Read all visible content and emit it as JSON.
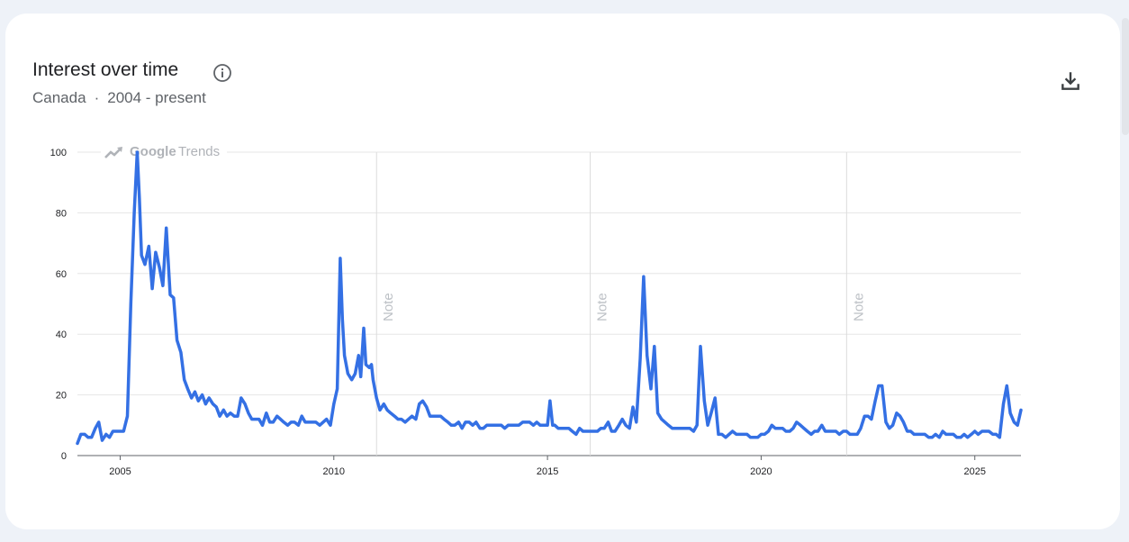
{
  "header": {
    "title": "Interest over time",
    "region": "Canada",
    "separator": "·",
    "range": "2004 - present"
  },
  "watermark": {
    "brand": "Google",
    "product": "Trends"
  },
  "colors": {
    "line": "#3470e4",
    "grid": "#e6e6e6",
    "background": "#ffffff"
  },
  "icons": [
    "info-icon",
    "download-icon",
    "trends-logo-icon"
  ],
  "chart_data": {
    "type": "line",
    "title": "Interest over time",
    "xlabel": "",
    "ylabel": "",
    "xlim": [
      2004.0,
      2026.08
    ],
    "ylim": [
      0,
      100
    ],
    "yticks": [
      0,
      20,
      40,
      60,
      80,
      100
    ],
    "xticks": [
      2005,
      2010,
      2015,
      2020,
      2025
    ],
    "grid": true,
    "notes": [
      {
        "x": 2011.0,
        "label": "Note"
      },
      {
        "x": 2016.0,
        "label": "Note"
      },
      {
        "x": 2022.0,
        "label": "Note"
      }
    ],
    "series": [
      {
        "values": [
          [
            2004.0,
            4
          ],
          [
            2004.08,
            7
          ],
          [
            2004.17,
            7
          ],
          [
            2004.25,
            6
          ],
          [
            2004.33,
            6
          ],
          [
            2004.42,
            9
          ],
          [
            2004.5,
            11
          ],
          [
            2004.58,
            5
          ],
          [
            2004.67,
            7
          ],
          [
            2004.75,
            6
          ],
          [
            2004.83,
            8
          ],
          [
            2004.92,
            8
          ],
          [
            2005.0,
            8
          ],
          [
            2005.08,
            8
          ],
          [
            2005.17,
            13
          ],
          [
            2005.25,
            50
          ],
          [
            2005.33,
            80
          ],
          [
            2005.4,
            100
          ],
          [
            2005.45,
            85
          ],
          [
            2005.5,
            66
          ],
          [
            2005.58,
            63
          ],
          [
            2005.67,
            69
          ],
          [
            2005.75,
            55
          ],
          [
            2005.83,
            67
          ],
          [
            2005.92,
            62
          ],
          [
            2006.0,
            56
          ],
          [
            2006.08,
            75
          ],
          [
            2006.17,
            53
          ],
          [
            2006.25,
            52
          ],
          [
            2006.33,
            38
          ],
          [
            2006.42,
            34
          ],
          [
            2006.5,
            25
          ],
          [
            2006.58,
            22
          ],
          [
            2006.67,
            19
          ],
          [
            2006.75,
            21
          ],
          [
            2006.83,
            18
          ],
          [
            2006.92,
            20
          ],
          [
            2007.0,
            17
          ],
          [
            2007.08,
            19
          ],
          [
            2007.17,
            17
          ],
          [
            2007.25,
            16
          ],
          [
            2007.33,
            13
          ],
          [
            2007.42,
            15
          ],
          [
            2007.5,
            13
          ],
          [
            2007.58,
            14
          ],
          [
            2007.67,
            13
          ],
          [
            2007.75,
            13
          ],
          [
            2007.83,
            19
          ],
          [
            2007.92,
            17
          ],
          [
            2008.0,
            14
          ],
          [
            2008.08,
            12
          ],
          [
            2008.17,
            12
          ],
          [
            2008.25,
            12
          ],
          [
            2008.33,
            10
          ],
          [
            2008.42,
            14
          ],
          [
            2008.5,
            11
          ],
          [
            2008.58,
            11
          ],
          [
            2008.67,
            13
          ],
          [
            2008.75,
            12
          ],
          [
            2008.83,
            11
          ],
          [
            2008.92,
            10
          ],
          [
            2009.0,
            11
          ],
          [
            2009.08,
            11
          ],
          [
            2009.17,
            10
          ],
          [
            2009.25,
            13
          ],
          [
            2009.33,
            11
          ],
          [
            2009.42,
            11
          ],
          [
            2009.5,
            11
          ],
          [
            2009.58,
            11
          ],
          [
            2009.67,
            10
          ],
          [
            2009.75,
            11
          ],
          [
            2009.83,
            12
          ],
          [
            2009.92,
            10
          ],
          [
            2010.0,
            17
          ],
          [
            2010.08,
            22
          ],
          [
            2010.15,
            65
          ],
          [
            2010.2,
            45
          ],
          [
            2010.25,
            33
          ],
          [
            2010.33,
            27
          ],
          [
            2010.42,
            25
          ],
          [
            2010.5,
            27
          ],
          [
            2010.58,
            33
          ],
          [
            2010.63,
            26
          ],
          [
            2010.7,
            42
          ],
          [
            2010.75,
            30
          ],
          [
            2010.83,
            29
          ],
          [
            2010.88,
            30
          ],
          [
            2010.92,
            25
          ],
          [
            2011.0,
            19
          ],
          [
            2011.08,
            15
          ],
          [
            2011.17,
            17
          ],
          [
            2011.25,
            15
          ],
          [
            2011.33,
            14
          ],
          [
            2011.42,
            13
          ],
          [
            2011.5,
            12
          ],
          [
            2011.58,
            12
          ],
          [
            2011.67,
            11
          ],
          [
            2011.75,
            12
          ],
          [
            2011.83,
            13
          ],
          [
            2011.92,
            12
          ],
          [
            2012.0,
            17
          ],
          [
            2012.08,
            18
          ],
          [
            2012.17,
            16
          ],
          [
            2012.25,
            13
          ],
          [
            2012.33,
            13
          ],
          [
            2012.42,
            13
          ],
          [
            2012.5,
            13
          ],
          [
            2012.58,
            12
          ],
          [
            2012.67,
            11
          ],
          [
            2012.75,
            10
          ],
          [
            2012.83,
            10
          ],
          [
            2012.92,
            11
          ],
          [
            2013.0,
            9
          ],
          [
            2013.08,
            11
          ],
          [
            2013.17,
            11
          ],
          [
            2013.25,
            10
          ],
          [
            2013.33,
            11
          ],
          [
            2013.42,
            9
          ],
          [
            2013.5,
            9
          ],
          [
            2013.58,
            10
          ],
          [
            2013.67,
            10
          ],
          [
            2013.75,
            10
          ],
          [
            2013.83,
            10
          ],
          [
            2013.92,
            10
          ],
          [
            2014.0,
            9
          ],
          [
            2014.08,
            10
          ],
          [
            2014.17,
            10
          ],
          [
            2014.25,
            10
          ],
          [
            2014.33,
            10
          ],
          [
            2014.42,
            11
          ],
          [
            2014.5,
            11
          ],
          [
            2014.58,
            11
          ],
          [
            2014.67,
            10
          ],
          [
            2014.75,
            11
          ],
          [
            2014.83,
            10
          ],
          [
            2014.92,
            10
          ],
          [
            2015.0,
            10
          ],
          [
            2015.06,
            18
          ],
          [
            2015.12,
            10
          ],
          [
            2015.17,
            10
          ],
          [
            2015.25,
            9
          ],
          [
            2015.33,
            9
          ],
          [
            2015.42,
            9
          ],
          [
            2015.5,
            9
          ],
          [
            2015.58,
            8
          ],
          [
            2015.67,
            7
          ],
          [
            2015.75,
            9
          ],
          [
            2015.83,
            8
          ],
          [
            2015.92,
            8
          ],
          [
            2016.0,
            8
          ],
          [
            2016.08,
            8
          ],
          [
            2016.17,
            8
          ],
          [
            2016.25,
            9
          ],
          [
            2016.33,
            9
          ],
          [
            2016.42,
            11
          ],
          [
            2016.5,
            8
          ],
          [
            2016.58,
            8
          ],
          [
            2016.67,
            10
          ],
          [
            2016.75,
            12
          ],
          [
            2016.83,
            10
          ],
          [
            2016.92,
            9
          ],
          [
            2017.0,
            16
          ],
          [
            2017.08,
            11
          ],
          [
            2017.17,
            32
          ],
          [
            2017.25,
            59
          ],
          [
            2017.33,
            33
          ],
          [
            2017.42,
            22
          ],
          [
            2017.5,
            36
          ],
          [
            2017.58,
            14
          ],
          [
            2017.67,
            12
          ],
          [
            2017.75,
            11
          ],
          [
            2017.83,
            10
          ],
          [
            2017.92,
            9
          ],
          [
            2018.0,
            9
          ],
          [
            2018.08,
            9
          ],
          [
            2018.17,
            9
          ],
          [
            2018.25,
            9
          ],
          [
            2018.33,
            9
          ],
          [
            2018.42,
            8
          ],
          [
            2018.5,
            10
          ],
          [
            2018.58,
            36
          ],
          [
            2018.67,
            18
          ],
          [
            2018.75,
            10
          ],
          [
            2018.83,
            14
          ],
          [
            2018.92,
            19
          ],
          [
            2019.0,
            7
          ],
          [
            2019.08,
            7
          ],
          [
            2019.17,
            6
          ],
          [
            2019.25,
            7
          ],
          [
            2019.33,
            8
          ],
          [
            2019.42,
            7
          ],
          [
            2019.5,
            7
          ],
          [
            2019.58,
            7
          ],
          [
            2019.67,
            7
          ],
          [
            2019.75,
            6
          ],
          [
            2019.83,
            6
          ],
          [
            2019.92,
            6
          ],
          [
            2020.0,
            7
          ],
          [
            2020.08,
            7
          ],
          [
            2020.17,
            8
          ],
          [
            2020.25,
            10
          ],
          [
            2020.33,
            9
          ],
          [
            2020.42,
            9
          ],
          [
            2020.5,
            9
          ],
          [
            2020.58,
            8
          ],
          [
            2020.67,
            8
          ],
          [
            2020.75,
            9
          ],
          [
            2020.83,
            11
          ],
          [
            2020.92,
            10
          ],
          [
            2021.0,
            9
          ],
          [
            2021.08,
            8
          ],
          [
            2021.17,
            7
          ],
          [
            2021.25,
            8
          ],
          [
            2021.33,
            8
          ],
          [
            2021.42,
            10
          ],
          [
            2021.5,
            8
          ],
          [
            2021.58,
            8
          ],
          [
            2021.67,
            8
          ],
          [
            2021.75,
            8
          ],
          [
            2021.83,
            7
          ],
          [
            2021.92,
            8
          ],
          [
            2022.0,
            8
          ],
          [
            2022.08,
            7
          ],
          [
            2022.17,
            7
          ],
          [
            2022.25,
            7
          ],
          [
            2022.33,
            9
          ],
          [
            2022.42,
            13
          ],
          [
            2022.5,
            13
          ],
          [
            2022.58,
            12
          ],
          [
            2022.67,
            18
          ],
          [
            2022.75,
            23
          ],
          [
            2022.83,
            23
          ],
          [
            2022.92,
            11
          ],
          [
            2023.0,
            9
          ],
          [
            2023.08,
            10
          ],
          [
            2023.17,
            14
          ],
          [
            2023.25,
            13
          ],
          [
            2023.33,
            11
          ],
          [
            2023.42,
            8
          ],
          [
            2023.5,
            8
          ],
          [
            2023.58,
            7
          ],
          [
            2023.67,
            7
          ],
          [
            2023.75,
            7
          ],
          [
            2023.83,
            7
          ],
          [
            2023.92,
            6
          ],
          [
            2024.0,
            6
          ],
          [
            2024.08,
            7
          ],
          [
            2024.17,
            6
          ],
          [
            2024.25,
            8
          ],
          [
            2024.33,
            7
          ],
          [
            2024.42,
            7
          ],
          [
            2024.5,
            7
          ],
          [
            2024.58,
            6
          ],
          [
            2024.67,
            6
          ],
          [
            2024.75,
            7
          ],
          [
            2024.83,
            6
          ],
          [
            2024.92,
            7
          ],
          [
            2025.0,
            8
          ],
          [
            2025.08,
            7
          ],
          [
            2025.17,
            8
          ],
          [
            2025.25,
            8
          ],
          [
            2025.33,
            8
          ],
          [
            2025.42,
            7
          ],
          [
            2025.5,
            7
          ],
          [
            2025.58,
            6
          ],
          [
            2025.67,
            17
          ],
          [
            2025.75,
            23
          ],
          [
            2025.83,
            14
          ],
          [
            2025.92,
            11
          ],
          [
            2026.0,
            10
          ],
          [
            2026.08,
            15
          ]
        ]
      }
    ]
  }
}
